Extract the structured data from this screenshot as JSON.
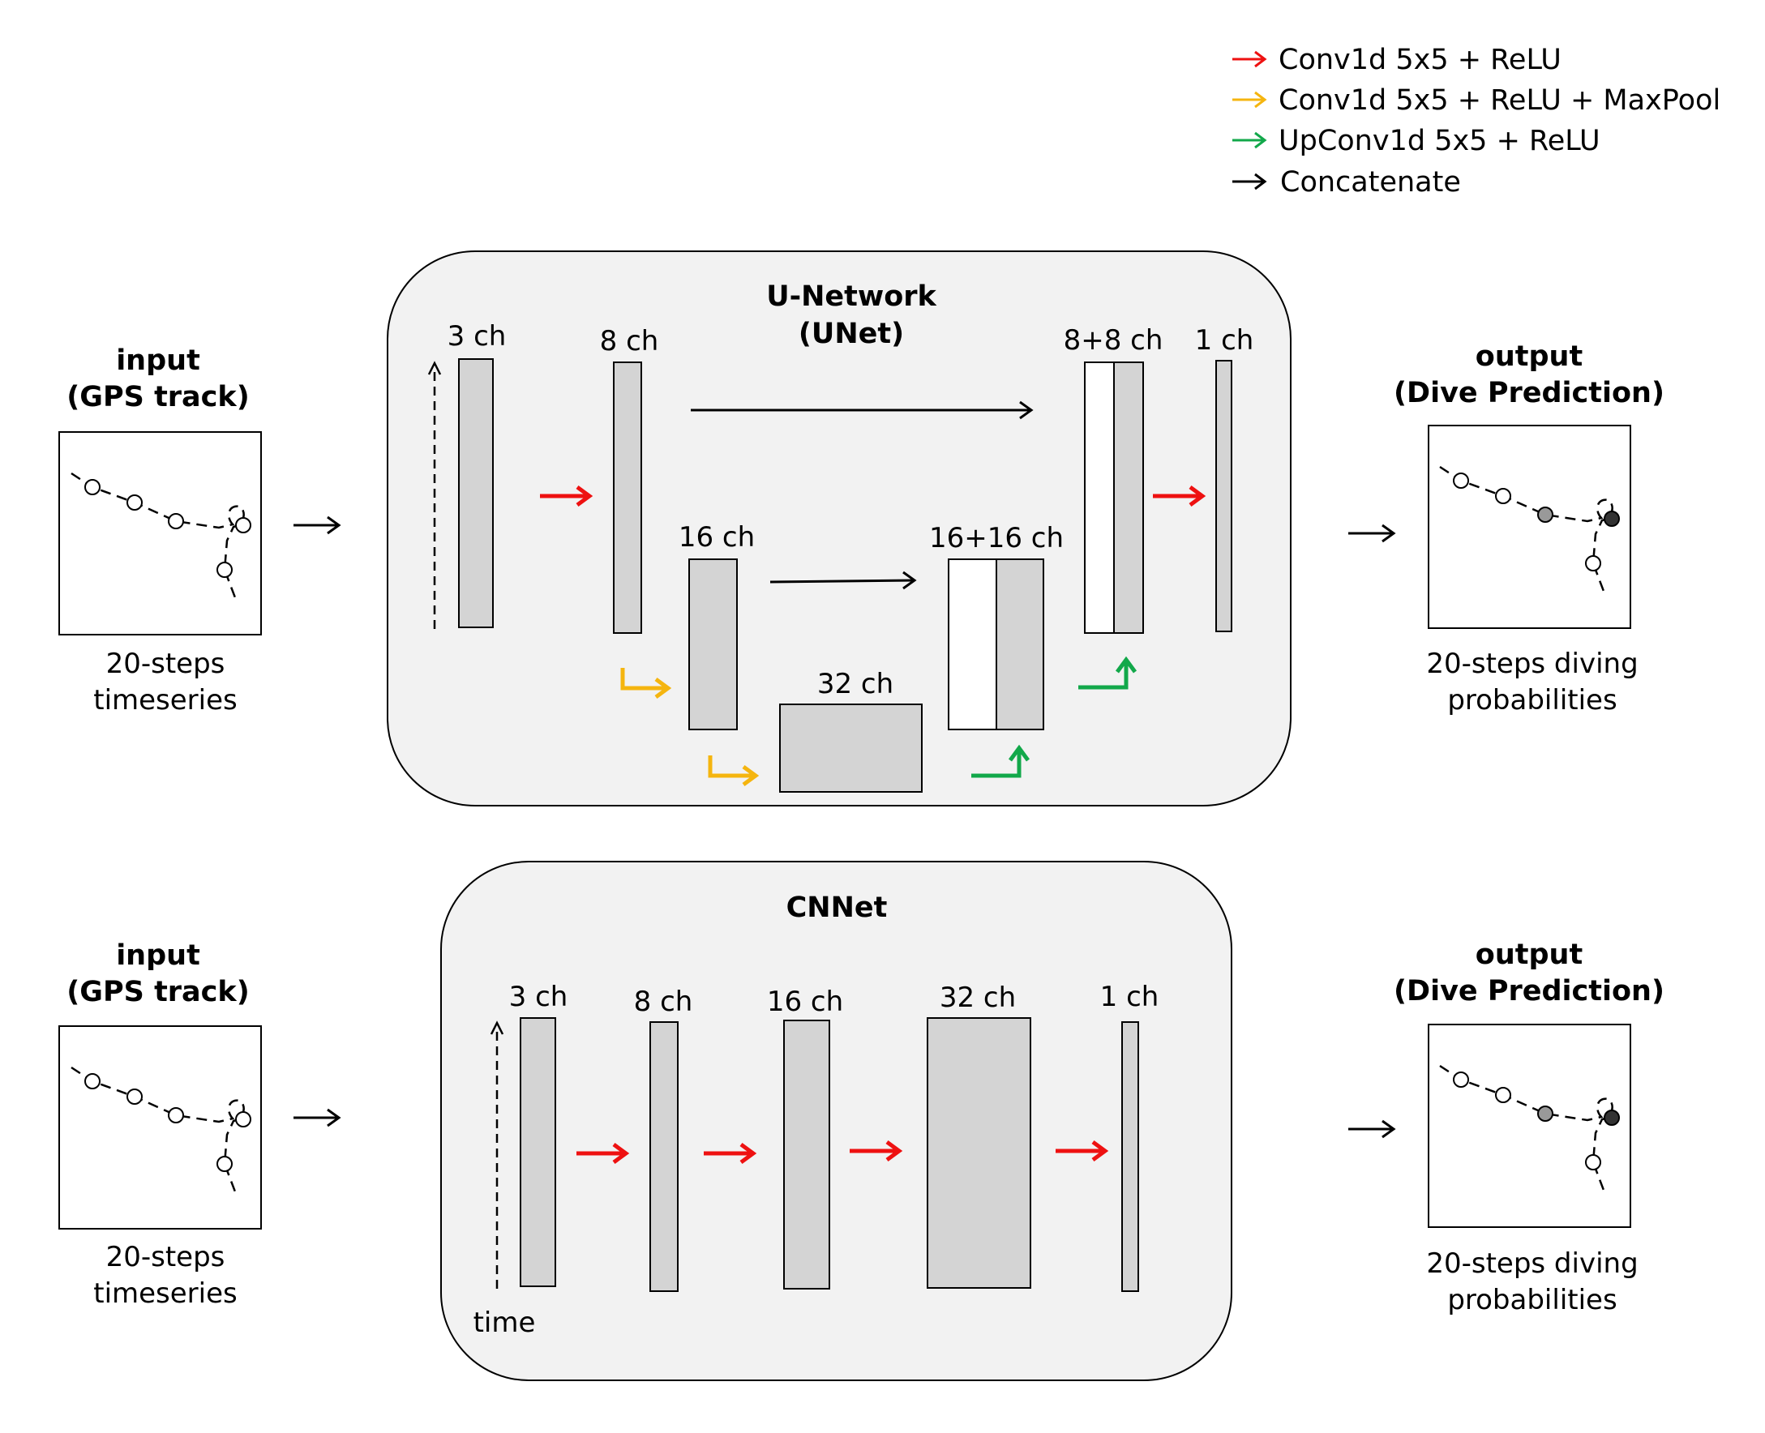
{
  "legend": [
    {
      "label": "Conv1d 5x5 + ReLU",
      "color": "#ee1111"
    },
    {
      "label": "Conv1d 5x5 + ReLU + MaxPool",
      "color": "#f5b50f"
    },
    {
      "label": "UpConv1d 5x5 + ReLU",
      "color": "#12a84a"
    },
    {
      "label": "Concatenate",
      "color": "#000000"
    }
  ],
  "unet": {
    "title_line1": "U-Network",
    "title_line2": "(UNet)",
    "channels": {
      "c3": "3 ch",
      "c8": "8 ch",
      "c16": "16 ch",
      "c32": "32 ch",
      "c16_16": "16+16 ch",
      "c8_8": "8+8 ch",
      "c1": "1 ch"
    }
  },
  "cnnet": {
    "title": "CNNet",
    "channels": {
      "c3": "3 ch",
      "c8": "8 ch",
      "c16": "16 ch",
      "c32": "32 ch",
      "c1": "1 ch"
    },
    "time_label": "time"
  },
  "input": {
    "title_line1": "input",
    "title_line2": "(GPS track)",
    "caption_line1": "20-steps",
    "caption_line2": "timeseries"
  },
  "output": {
    "title_line1": "output",
    "title_line2": "(Dive Prediction)",
    "caption_line1": "20-steps diving",
    "caption_line2": "probabilities"
  },
  "colors": {
    "block_fill": "#d4d4d4",
    "panel_fill": "#f2f2f2",
    "conv": "#ee1111",
    "pool": "#f5b50f",
    "upconv": "#12a84a",
    "mid_dot": "#999999",
    "dark_dot": "#333333"
  }
}
